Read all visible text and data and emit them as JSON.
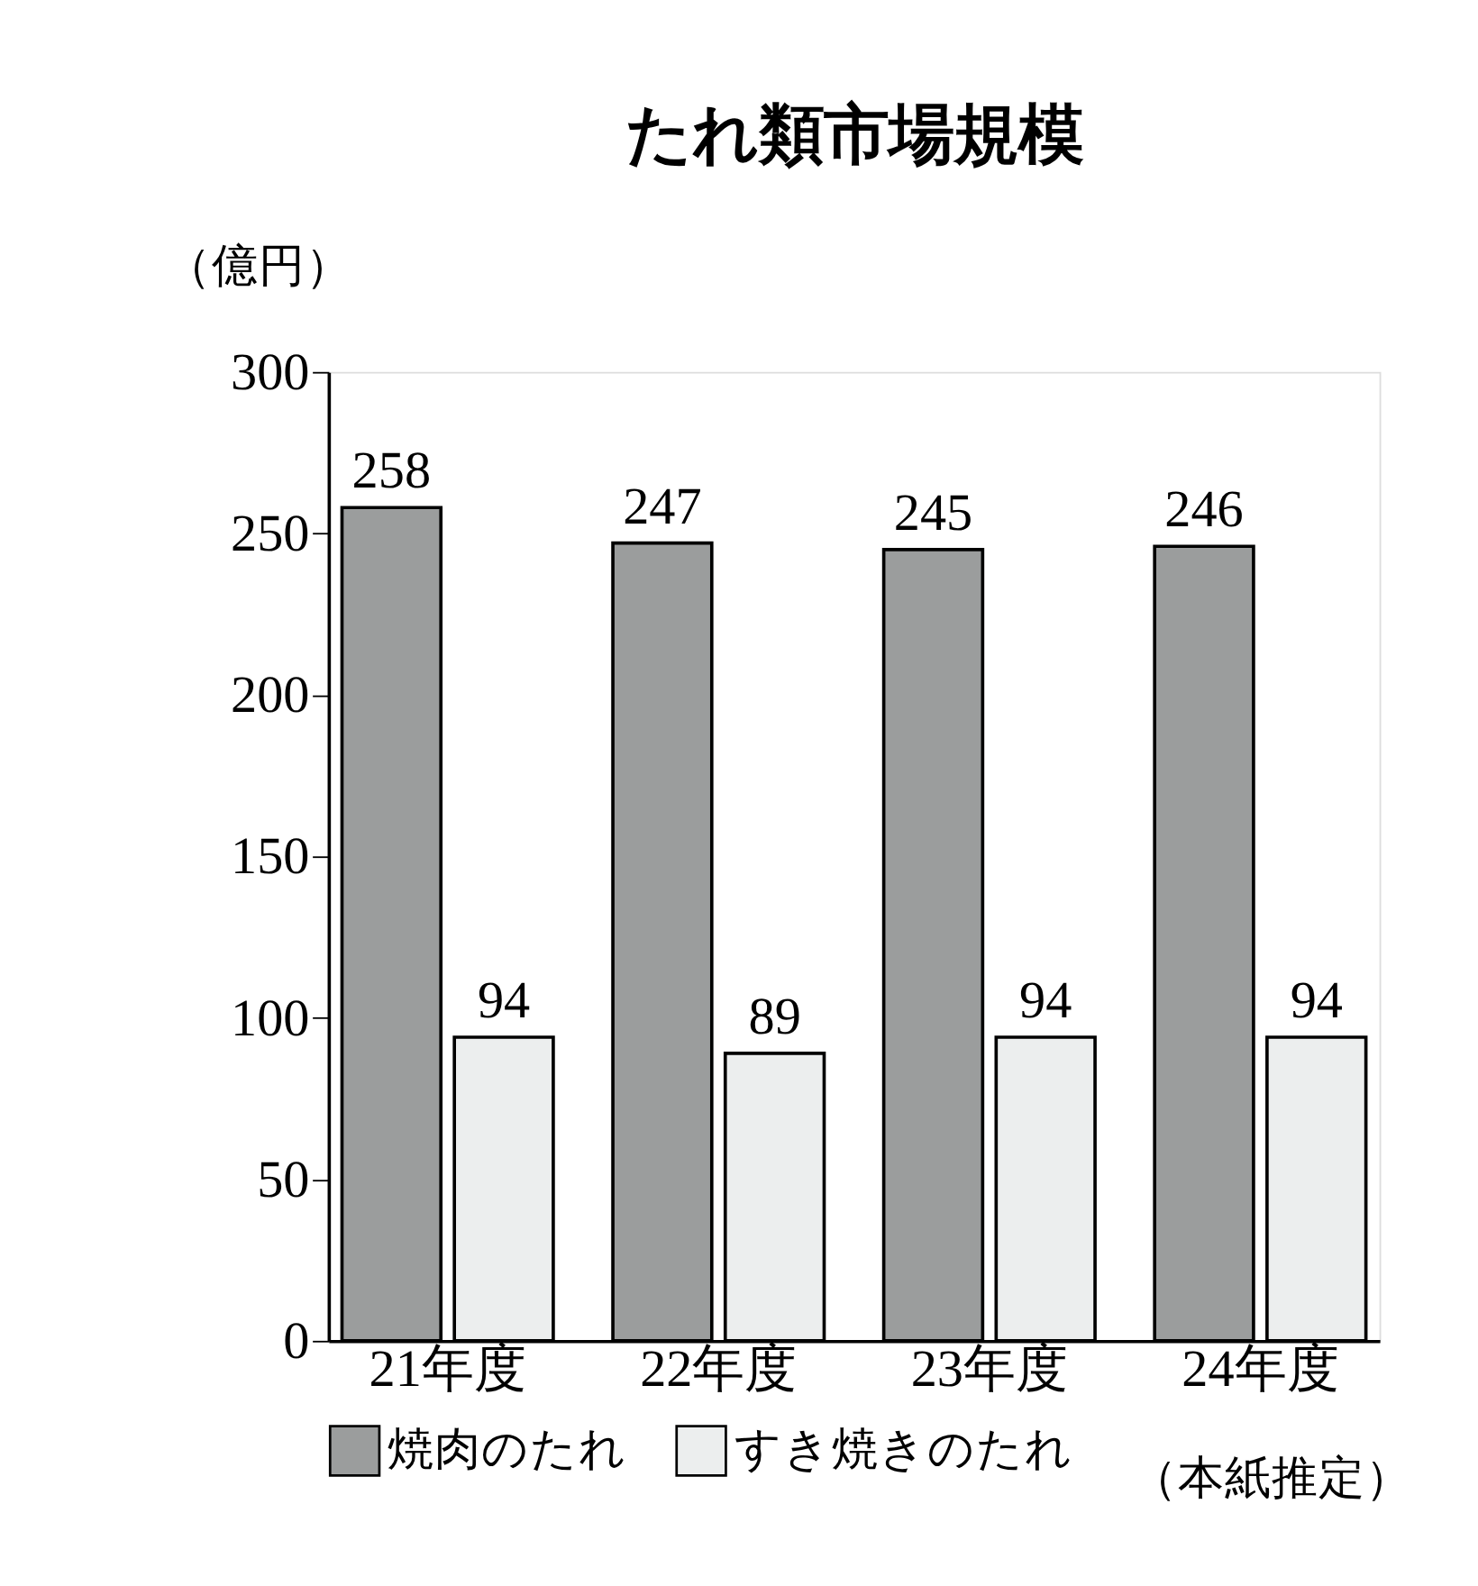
{
  "chart_data": {
    "type": "bar",
    "title": "たれ類市場規模",
    "ylabel": "（億円）",
    "categories": [
      "21年度",
      "22年度",
      "23年度",
      "24年度"
    ],
    "series": [
      {
        "name": "焼肉のたれ",
        "color": "#9b9d9d",
        "values": [
          258,
          247,
          245,
          246
        ]
      },
      {
        "name": "すき焼きのたれ",
        "color": "#eceeee",
        "values": [
          94,
          89,
          94,
          94
        ]
      }
    ],
    "ylim": [
      0,
      300
    ],
    "yticks": [
      0,
      50,
      100,
      150,
      200,
      250,
      300
    ],
    "grid": false,
    "legend": "bottom",
    "data_labels": true,
    "annotations": [
      "（本紙推定）"
    ]
  }
}
